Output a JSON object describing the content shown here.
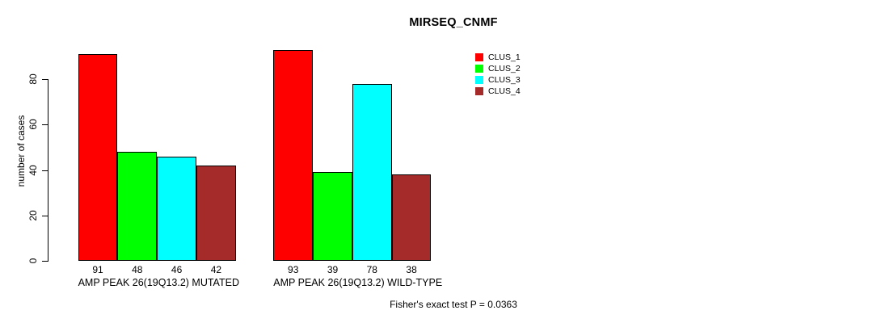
{
  "title": "MIRSEQ_CNMF",
  "y_axis": {
    "label": "number of cases",
    "ticks": [
      0,
      20,
      40,
      60,
      80
    ]
  },
  "footer": "Fisher's exact test P = 0.0363",
  "legend": {
    "entries": [
      {
        "label": "CLUS_1",
        "color": "#FF0000"
      },
      {
        "label": "CLUS_2",
        "color": "#00FF00"
      },
      {
        "label": "CLUS_3",
        "color": "#00FFFF"
      },
      {
        "label": "CLUS_4",
        "color": "#A52A2A"
      }
    ]
  },
  "chart_data": {
    "type": "bar",
    "title": "MIRSEQ_CNMF",
    "xlabel": "",
    "ylabel": "number of cases",
    "ylim": [
      0,
      93
    ],
    "yticks": [
      0,
      20,
      40,
      60,
      80
    ],
    "grid": false,
    "legend_position": "top-right",
    "bar_value_labels": true,
    "categories": [
      "AMP PEAK 26(19Q13.2) MUTATED",
      "AMP PEAK 26(19Q13.2) WILD-TYPE"
    ],
    "series": [
      {
        "name": "CLUS_1",
        "color": "#FF0000",
        "values": [
          91,
          93
        ]
      },
      {
        "name": "CLUS_2",
        "color": "#00FF00",
        "values": [
          48,
          39
        ]
      },
      {
        "name": "CLUS_3",
        "color": "#00FFFF",
        "values": [
          46,
          78
        ]
      },
      {
        "name": "CLUS_4",
        "color": "#A52A2A",
        "values": [
          42,
          38
        ]
      }
    ],
    "annotation": "Fisher's exact test P = 0.0363"
  }
}
